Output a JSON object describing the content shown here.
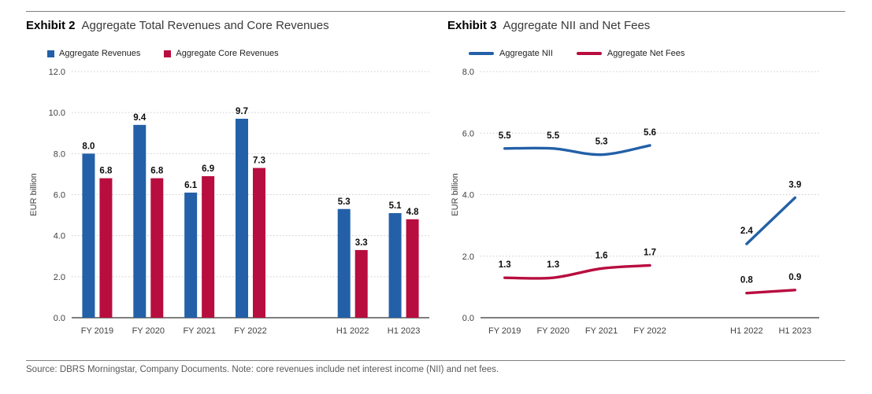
{
  "colors": {
    "blue": "#2360A8",
    "red": "#B80D3F",
    "grid": "#cccccc",
    "baseline": "#333333",
    "tick_text": "#404040",
    "value_label": "#0d0d0d",
    "axis_title": "#404040"
  },
  "footer": {
    "source_note": "Source: DBRS Morningstar, Company Documents. Note: core revenues include net interest income (NII) and net fees."
  },
  "chart_data": [
    {
      "type": "bar",
      "exhibit_label": "Exhibit 2",
      "title": "Aggregate Total Revenues and Core Revenues",
      "ylabel": "EUR billion",
      "ylim": [
        0,
        12
      ],
      "yticks": [
        "0.0",
        "2.0",
        "4.0",
        "6.0",
        "8.0",
        "10.0",
        "12.0"
      ],
      "grid": true,
      "legend_position": "top",
      "categories": [
        "FY 2019",
        "FY 2020",
        "FY 2021",
        "FY 2022",
        "H1 2022",
        "H1 2023"
      ],
      "gap_after_index": 3,
      "series": [
        {
          "name": "Aggregate Revenues",
          "color_key": "blue",
          "values": [
            8.0,
            9.4,
            6.1,
            9.7,
            5.3,
            5.1
          ],
          "labels": [
            "8.0",
            "9.4",
            "6.1",
            "9.7",
            "5.3",
            "5.1"
          ]
        },
        {
          "name": "Aggregate Core Revenues",
          "color_key": "red",
          "values": [
            6.8,
            6.8,
            6.9,
            7.3,
            3.3,
            4.8
          ],
          "labels": [
            "6.8",
            "6.8",
            "6.9",
            "7.3",
            "3.3",
            "4.8"
          ]
        }
      ]
    },
    {
      "type": "line",
      "exhibit_label": "Exhibit 3",
      "title": "Aggregate NII and Net Fees",
      "ylabel": "EUR billion",
      "ylim": [
        0,
        8
      ],
      "yticks": [
        "0.0",
        "2.0",
        "4.0",
        "6.0",
        "8.0"
      ],
      "grid": true,
      "legend_position": "top",
      "categories": [
        "FY 2019",
        "FY 2020",
        "FY 2021",
        "FY 2022",
        "H1 2022",
        "H1 2023"
      ],
      "gap_after_index": 3,
      "segments": [
        [
          0,
          1,
          2,
          3
        ],
        [
          4,
          5
        ]
      ],
      "series": [
        {
          "name": "Aggregate NII",
          "color_key": "blue",
          "values": [
            5.5,
            5.5,
            5.3,
            5.6,
            2.4,
            3.9
          ],
          "labels": [
            "5.5",
            "5.5",
            "5.3",
            "5.6",
            "2.4",
            "3.9"
          ]
        },
        {
          "name": "Aggregate Net Fees",
          "color_key": "red",
          "values": [
            1.3,
            1.3,
            1.6,
            1.7,
            0.8,
            0.9
          ],
          "labels": [
            "1.3",
            "1.3",
            "1.6",
            "1.7",
            "0.8",
            "0.9"
          ]
        }
      ]
    }
  ]
}
